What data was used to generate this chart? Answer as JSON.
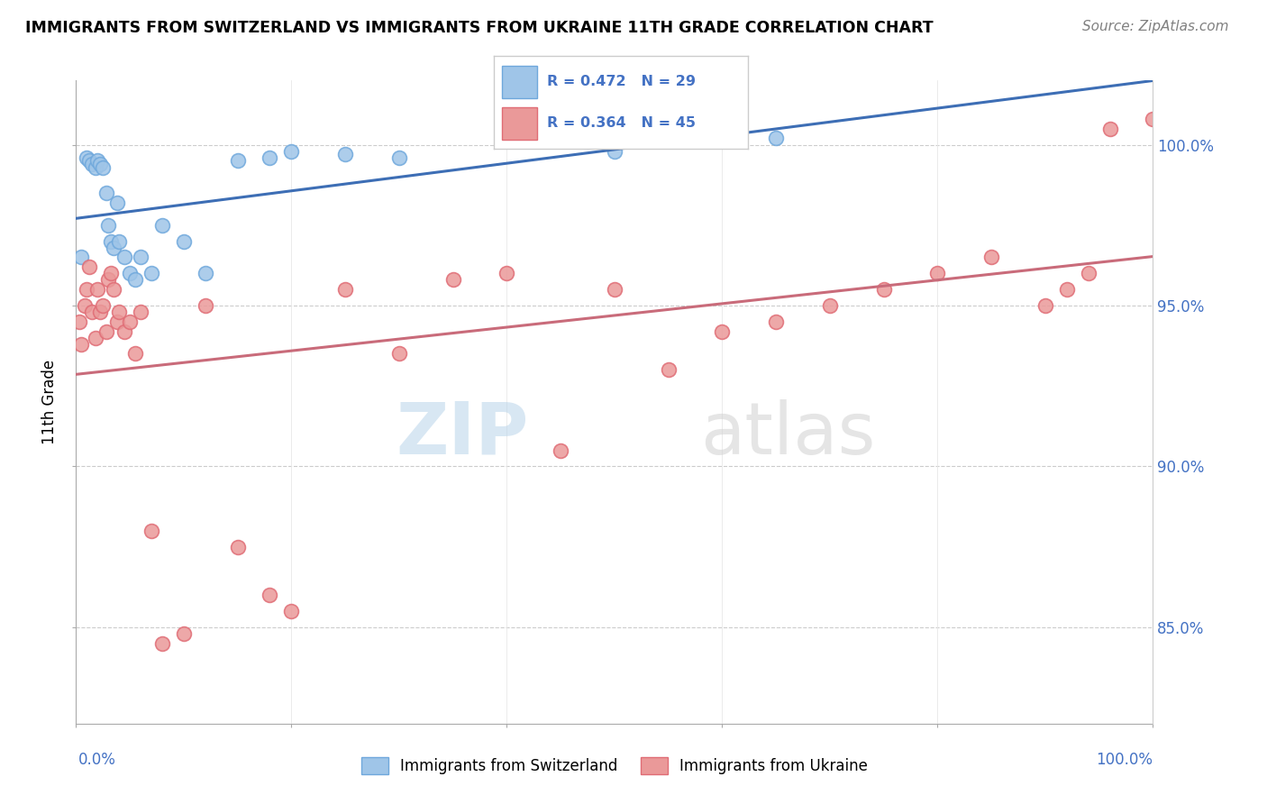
{
  "title": "IMMIGRANTS FROM SWITZERLAND VS IMMIGRANTS FROM UKRAINE 11TH GRADE CORRELATION CHART",
  "source": "Source: ZipAtlas.com",
  "ylabel": "11th Grade",
  "watermark_zip": "ZIP",
  "watermark_atlas": "atlas",
  "legend_blue_r": "R = 0.472",
  "legend_blue_n": "N = 29",
  "legend_pink_r": "R = 0.364",
  "legend_pink_n": "N = 45",
  "legend_label_blue": "Immigrants from Switzerland",
  "legend_label_pink": "Immigrants from Ukraine",
  "blue_color": "#9fc5e8",
  "pink_color": "#ea9999",
  "blue_edge_color": "#6fa8dc",
  "pink_edge_color": "#e06c75",
  "blue_line_color": "#3d6eb5",
  "pink_line_color": "#c96b7a",
  "axis_label_color": "#4472c4",
  "grid_color": "#cccccc",
  "xmin": 0.0,
  "xmax": 100.0,
  "ymin": 82.0,
  "ymax": 102.0,
  "yticks_grid": [
    85.0,
    90.0,
    95.0,
    100.0
  ],
  "blue_x": [
    0.5,
    1.0,
    1.2,
    1.5,
    1.8,
    2.0,
    2.2,
    2.5,
    2.8,
    3.0,
    3.2,
    3.5,
    3.8,
    4.0,
    4.5,
    5.0,
    5.5,
    6.0,
    7.0,
    8.0,
    10.0,
    12.0,
    15.0,
    18.0,
    20.0,
    25.0,
    30.0,
    50.0,
    65.0
  ],
  "blue_y": [
    96.5,
    99.6,
    99.5,
    99.4,
    99.3,
    99.5,
    99.4,
    99.3,
    98.5,
    97.5,
    97.0,
    96.8,
    98.2,
    97.0,
    96.5,
    96.0,
    95.8,
    96.5,
    96.0,
    97.5,
    97.0,
    96.0,
    99.5,
    99.6,
    99.8,
    99.7,
    99.6,
    99.8,
    100.2
  ],
  "pink_x": [
    0.3,
    0.5,
    0.8,
    1.0,
    1.2,
    1.5,
    1.8,
    2.0,
    2.2,
    2.5,
    2.8,
    3.0,
    3.2,
    3.5,
    3.8,
    4.0,
    4.5,
    5.0,
    5.5,
    6.0,
    7.0,
    8.0,
    10.0,
    12.0,
    15.0,
    18.0,
    20.0,
    25.0,
    30.0,
    35.0,
    40.0,
    45.0,
    50.0,
    55.0,
    60.0,
    65.0,
    70.0,
    75.0,
    80.0,
    85.0,
    90.0,
    92.0,
    94.0,
    96.0,
    100.0
  ],
  "pink_y": [
    94.5,
    93.8,
    95.0,
    95.5,
    96.2,
    94.8,
    94.0,
    95.5,
    94.8,
    95.0,
    94.2,
    95.8,
    96.0,
    95.5,
    94.5,
    94.8,
    94.2,
    94.5,
    93.5,
    94.8,
    88.0,
    84.5,
    84.8,
    95.0,
    87.5,
    86.0,
    85.5,
    95.5,
    93.5,
    95.8,
    96.0,
    90.5,
    95.5,
    93.0,
    94.2,
    94.5,
    95.0,
    95.5,
    96.0,
    96.5,
    95.0,
    95.5,
    96.0,
    100.5,
    100.8
  ]
}
